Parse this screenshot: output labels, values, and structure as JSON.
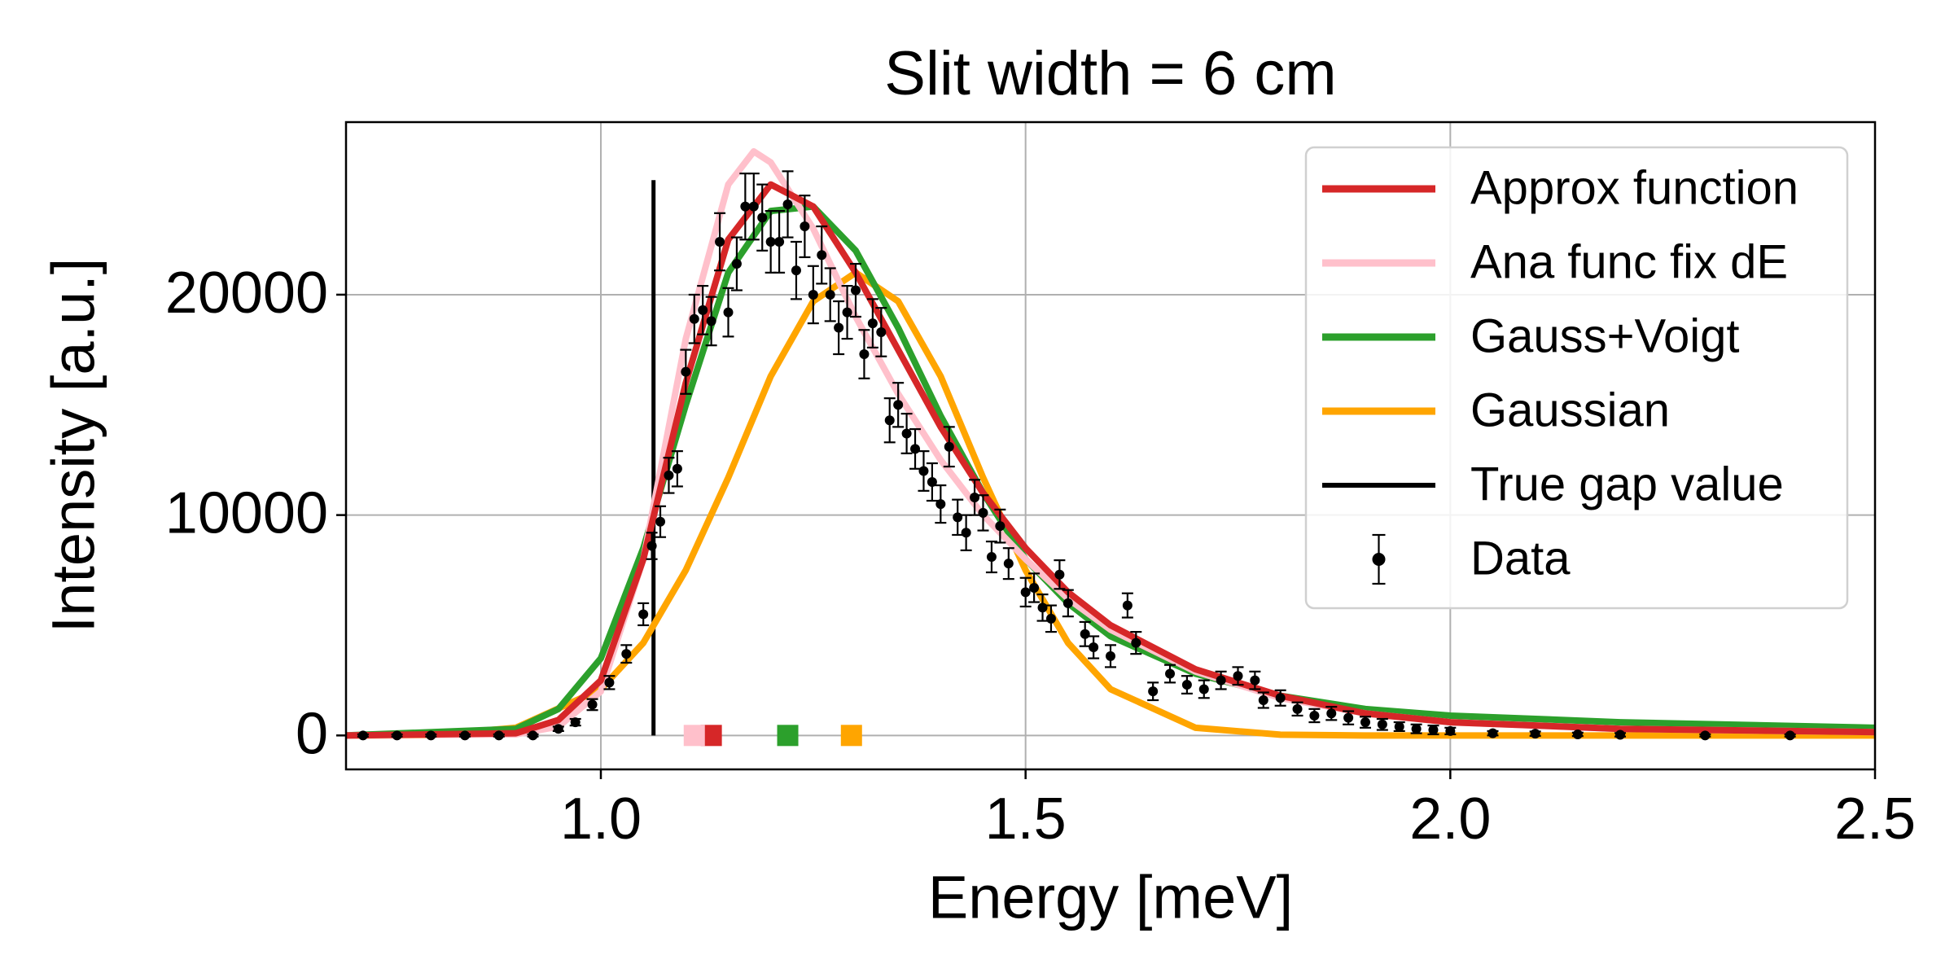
{
  "chart_data": {
    "type": "line",
    "title": "Slit width = 6 cm",
    "x_label": "Energy [meV]",
    "y_label": "Intensity [a.u.]",
    "xlim": [
      0.7,
      2.5
    ],
    "ylim": [
      -1540,
      27830
    ],
    "xticks": [
      {
        "value": 1,
        "label": "1.0"
      },
      1.5,
      {
        "value": 2,
        "label": "2.0"
      },
      2.5
    ],
    "yticks": [
      0,
      10000,
      20000
    ],
    "grid": true,
    "legend": "upper right",
    "series": [
      {
        "name": "Approx function",
        "color": "#d62728",
        "gap": 1.13,
        "x": [
          0.7,
          0.9,
          0.95,
          1.0,
          1.05,
          1.1,
          1.15,
          1.2,
          1.25,
          1.3,
          1.35,
          1.4,
          1.45,
          1.5,
          1.55,
          1.6,
          1.7,
          1.8,
          1.9,
          2.0,
          2.2,
          2.5
        ],
        "values": [
          0,
          100,
          700,
          2500,
          8000,
          16000,
          22500,
          25000,
          24000,
          21000,
          17500,
          14000,
          11000,
          8500,
          6500,
          5000,
          3000,
          1800,
          1000,
          600,
          300,
          150
        ]
      },
      {
        "name": "Ana func fix dE",
        "color": "#ffc0cb",
        "gap": 1.11,
        "x": [
          0.7,
          0.9,
          0.95,
          1.0,
          1.05,
          1.1,
          1.15,
          1.18,
          1.2,
          1.25,
          1.3,
          1.35,
          1.4,
          1.45,
          1.5,
          1.55,
          1.6,
          1.7,
          1.8,
          1.9,
          2.0,
          2.2,
          2.5
        ],
        "values": [
          0,
          50,
          400,
          2000,
          8000,
          18000,
          25000,
          26500,
          26000,
          23000,
          19000,
          15500,
          12500,
          10000,
          8000,
          6200,
          4800,
          2900,
          1700,
          1000,
          600,
          300,
          150
        ]
      },
      {
        "name": "Gauss+Voigt",
        "color": "#2ca02c",
        "gap": 1.22,
        "x": [
          0.7,
          0.9,
          0.95,
          1.0,
          1.05,
          1.1,
          1.15,
          1.2,
          1.25,
          1.3,
          1.35,
          1.4,
          1.45,
          1.5,
          1.55,
          1.6,
          1.7,
          1.8,
          1.9,
          2.0,
          2.2,
          2.5
        ],
        "values": [
          0,
          300,
          1200,
          3500,
          8500,
          15000,
          21000,
          23800,
          24000,
          22000,
          18500,
          14500,
          11000,
          8000,
          6000,
          4500,
          2800,
          1800,
          1200,
          900,
          600,
          350
        ]
      },
      {
        "name": "Gaussian",
        "color": "#ffa500",
        "gap": 1.295,
        "x": [
          0.7,
          0.8,
          0.9,
          1.0,
          1.05,
          1.1,
          1.15,
          1.2,
          1.25,
          1.3,
          1.35,
          1.4,
          1.45,
          1.5,
          1.55,
          1.6,
          1.7,
          1.8,
          1.9,
          2.0,
          2.5
        ],
        "values": [
          0,
          13,
          350,
          2100,
          4200,
          7500,
          11700,
          16300,
          19700,
          21000,
          19700,
          16300,
          11700,
          7500,
          4200,
          2100,
          350,
          35,
          0,
          0,
          0
        ]
      },
      {
        "name": "True gap value",
        "color": "#000000",
        "x": [
          1.062,
          1.062
        ],
        "values": [
          0,
          25200
        ]
      },
      {
        "name": "Data",
        "color": "#000000",
        "x": [
          0.72,
          0.76,
          0.8,
          0.84,
          0.88,
          0.92,
          0.95,
          0.97,
          0.99,
          1.01,
          1.03,
          1.05,
          1.06,
          1.07,
          1.08,
          1.09,
          1.1,
          1.11,
          1.12,
          1.13,
          1.14,
          1.15,
          1.16,
          1.17,
          1.18,
          1.19,
          1.2,
          1.21,
          1.22,
          1.23,
          1.24,
          1.25,
          1.26,
          1.27,
          1.28,
          1.29,
          1.3,
          1.31,
          1.32,
          1.33,
          1.34,
          1.35,
          1.36,
          1.37,
          1.38,
          1.39,
          1.4,
          1.41,
          1.42,
          1.43,
          1.44,
          1.45,
          1.46,
          1.47,
          1.48,
          1.5,
          1.51,
          1.52,
          1.53,
          1.54,
          1.55,
          1.57,
          1.58,
          1.6,
          1.62,
          1.63,
          1.65,
          1.67,
          1.69,
          1.71,
          1.73,
          1.75,
          1.77,
          1.78,
          1.8,
          1.82,
          1.84,
          1.86,
          1.88,
          1.9,
          1.92,
          1.94,
          1.96,
          1.98,
          2.0,
          2.05,
          2.1,
          2.15,
          2.2,
          2.3,
          2.4
        ],
        "values": [
          0,
          0,
          0,
          0,
          0,
          0,
          300,
          600,
          1400,
          2400,
          3700,
          5500,
          8600,
          9700,
          11800,
          12100,
          16500,
          18900,
          19300,
          18800,
          22400,
          19200,
          21400,
          24000,
          24000,
          23500,
          22400,
          22400,
          24100,
          21100,
          23100,
          20000,
          21800,
          20000,
          18500,
          19200,
          20200,
          17300,
          18700,
          18300,
          14300,
          15000,
          13700,
          13000,
          12000,
          11500,
          10500,
          13100,
          9900,
          9200,
          10800,
          10100,
          8100,
          9500,
          7800,
          6500,
          6700,
          5800,
          5300,
          7300,
          6000,
          4600,
          4000,
          3600,
          5900,
          4200,
          2000,
          2800,
          2300,
          2100,
          2500,
          2700,
          2500,
          1600,
          1700,
          1200,
          900,
          1000,
          800,
          600,
          500,
          400,
          300,
          250,
          200,
          100,
          80,
          50,
          30,
          0,
          0
        ],
        "errors": [
          50,
          50,
          50,
          50,
          50,
          50,
          100,
          150,
          250,
          300,
          400,
          500,
          600,
          700,
          800,
          800,
          1000,
          1100,
          1100,
          1100,
          1300,
          1100,
          1200,
          1500,
          1500,
          1500,
          1400,
          1400,
          1500,
          1300,
          1400,
          1300,
          1300,
          1200,
          1200,
          1200,
          1200,
          1100,
          1100,
          1100,
          1000,
          1000,
          900,
          900,
          900,
          850,
          850,
          900,
          800,
          800,
          800,
          800,
          700,
          750,
          700,
          650,
          650,
          600,
          600,
          650,
          600,
          550,
          500,
          500,
          550,
          500,
          400,
          400,
          400,
          400,
          400,
          400,
          400,
          350,
          350,
          300,
          300,
          300,
          300,
          250,
          250,
          200,
          200,
          200,
          150,
          100,
          100,
          80,
          80,
          50,
          50
        ]
      }
    ]
  }
}
